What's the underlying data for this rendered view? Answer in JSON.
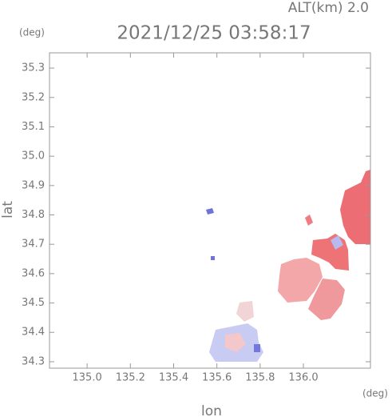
{
  "chart_data": {
    "type": "map",
    "subtitle": "ALT(km) 2.0",
    "title": "2021/12/25 03:58:17",
    "x_label": "lon",
    "y_label": "lat",
    "x_unit": "(deg)",
    "y_unit": "(deg)",
    "xlim": [
      134.826,
      136.31
    ],
    "ylim": [
      34.278,
      35.352
    ],
    "xticks": [
      {
        "value": 135,
        "label": "135.0"
      },
      135.2,
      135.4,
      135.6,
      135.8,
      {
        "value": 136,
        "label": "136.0"
      }
    ],
    "yticks": [
      34.3,
      34.4,
      34.5,
      34.6,
      34.7,
      34.8,
      34.9,
      {
        "value": 35,
        "label": "35.0"
      },
      35.1,
      35.2,
      35.3
    ]
  }
}
